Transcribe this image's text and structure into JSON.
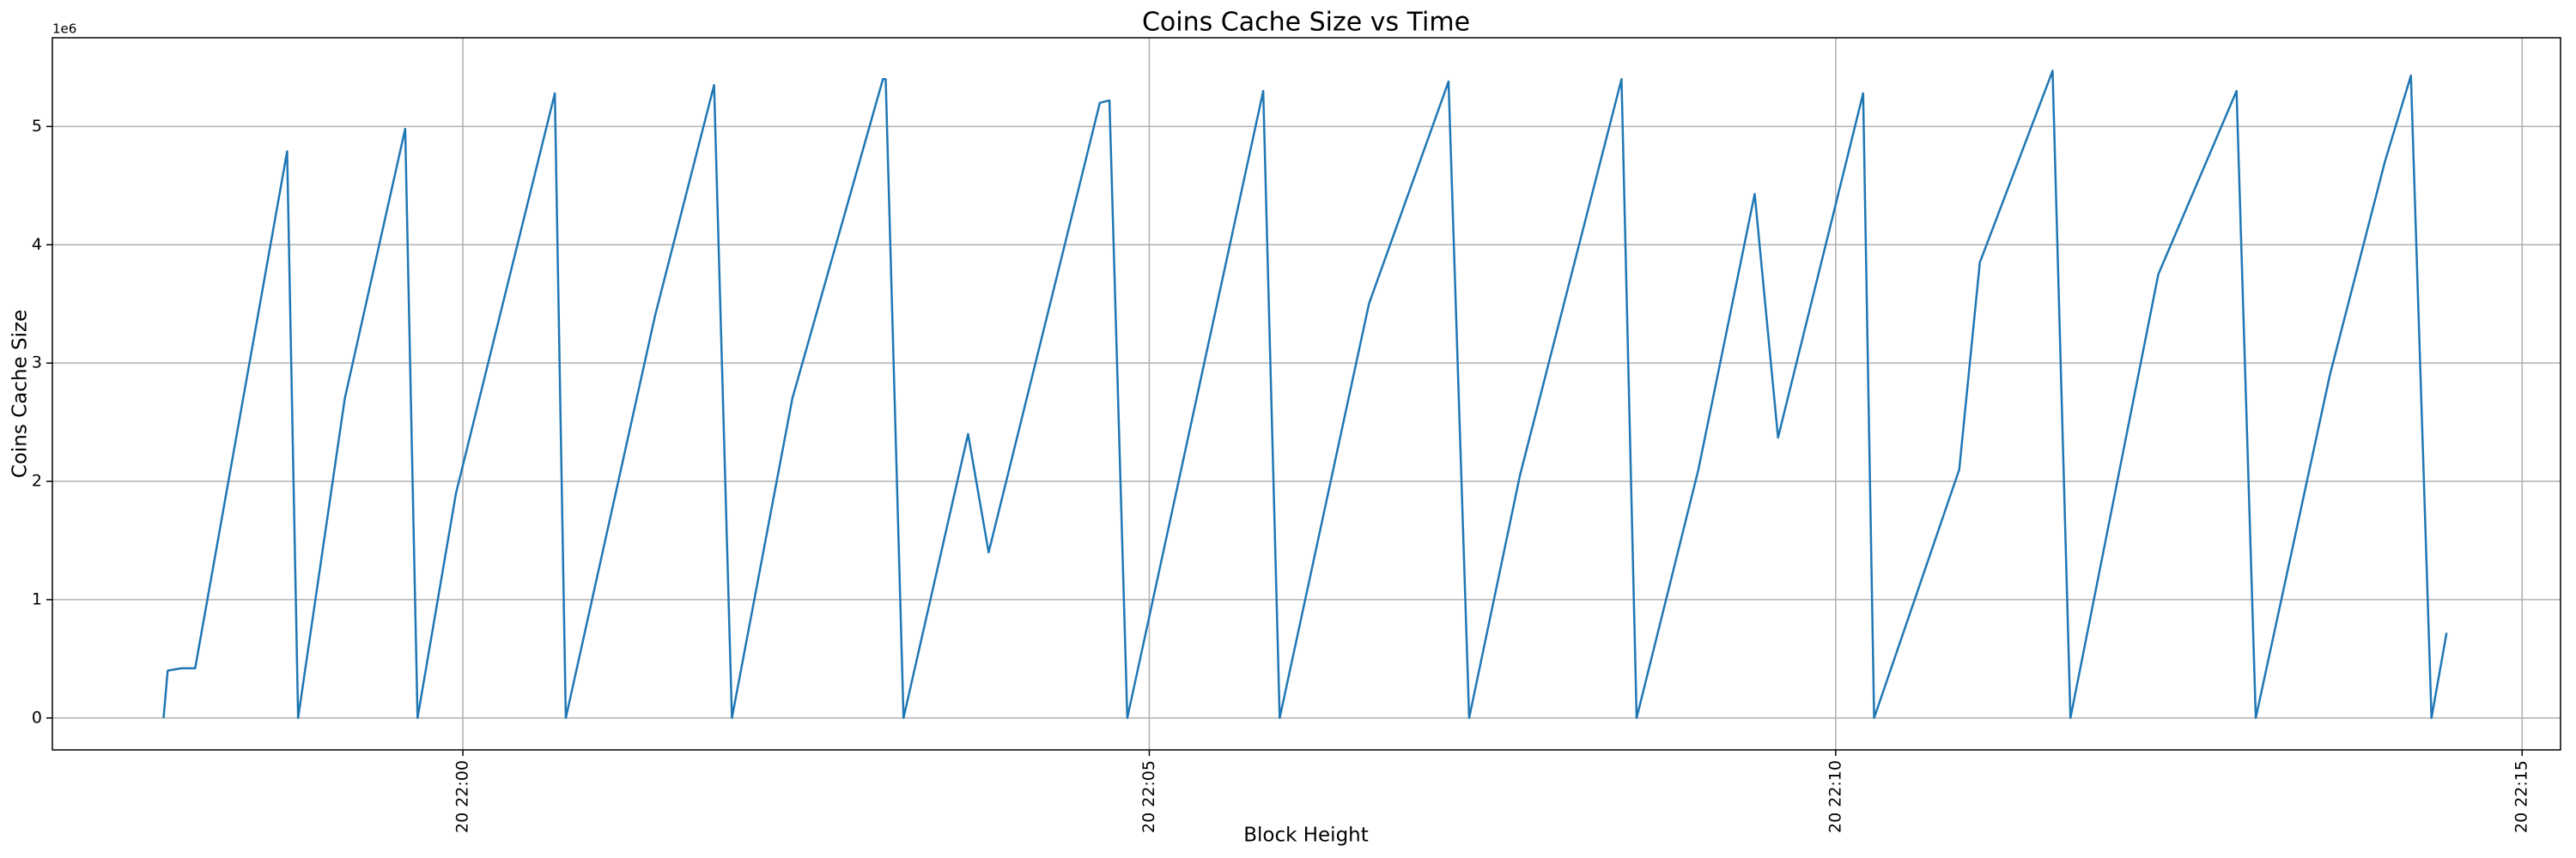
{
  "chart_data": {
    "type": "line",
    "title": "Coins Cache Size vs Time",
    "x_label": "Block Height",
    "y_label": "Coins Cache Size",
    "y_offset_label": "1e6",
    "x": [
      -2.18,
      -2.15,
      -2.05,
      -1.95,
      -1.28,
      -1.2,
      -0.86,
      -0.42,
      -0.33,
      -0.05,
      0.67,
      0.75,
      1.4,
      1.83,
      1.96,
      2.4,
      3.06,
      3.08,
      3.21,
      3.68,
      3.83,
      4.64,
      4.71,
      4.84,
      5.83,
      5.95,
      6.6,
      7.18,
      7.33,
      7.7,
      8.44,
      8.55,
      9.0,
      9.41,
      9.58,
      10.2,
      10.28,
      10.9,
      11.05,
      11.58,
      11.71,
      12.35,
      12.92,
      13.06,
      13.6,
      14.0,
      14.19,
      14.34,
      14.45
    ],
    "values": [
      0,
      0.4,
      0.42,
      0.42,
      4.79,
      0,
      2.7,
      4.98,
      0,
      1.9,
      5.28,
      0,
      3.4,
      5.35,
      0,
      2.7,
      5.4,
      5.4,
      0,
      2.4,
      1.4,
      5.2,
      5.22,
      0,
      5.3,
      0,
      3.5,
      5.38,
      0,
      2.05,
      5.4,
      0,
      2.1,
      4.43,
      2.37,
      5.28,
      0,
      2.1,
      3.85,
      5.47,
      0,
      3.75,
      5.3,
      0,
      2.9,
      4.7,
      5.43,
      0,
      0.72
    ],
    "color": "#1f77b4",
    "xlim": [
      -2.99,
      15.28
    ],
    "xticks": [
      {
        "value": 0,
        "label": "20 22:00"
      },
      {
        "value": 5,
        "label": "20 22:05"
      },
      {
        "value": 10,
        "label": "20 22:10"
      },
      {
        "value": 15,
        "label": "20 22:15"
      }
    ],
    "ylim": [
      -0.27,
      5.75
    ],
    "yticks": [
      0,
      1,
      2,
      3,
      4,
      5
    ],
    "grid": true
  }
}
